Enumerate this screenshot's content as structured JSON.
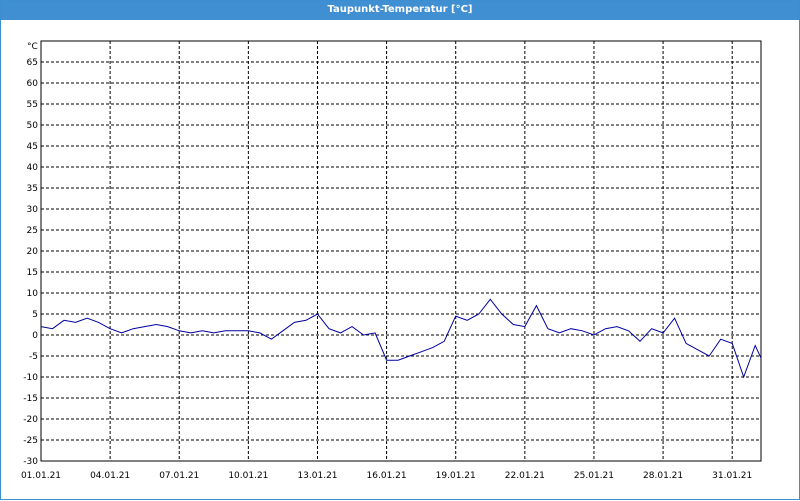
{
  "window": {
    "title": "Taupunkt-Temperatur [°C]"
  },
  "colors": {
    "title_bar": "#3f8fd2",
    "series": "#0000a0",
    "grid": "#000000"
  },
  "chart_data": {
    "type": "line",
    "title": "Taupunkt-Temperatur [°C]",
    "xlabel": "",
    "ylabel": "°C",
    "ylim": [
      -30,
      70
    ],
    "xlim": [
      "01.01.21",
      "01.02.21 06:00"
    ],
    "grid": true,
    "legend": "none",
    "x_ticks": [
      "01.01.21",
      "04.01.21",
      "07.01.21",
      "10.01.21",
      "13.01.21",
      "16.01.21",
      "19.01.21",
      "22.01.21",
      "25.01.21",
      "28.01.21",
      "31.01.21"
    ],
    "y_ticks": [
      -30,
      -25,
      -20,
      -15,
      -10,
      -5,
      0,
      5,
      10,
      15,
      20,
      25,
      30,
      35,
      40,
      45,
      50,
      55,
      60,
      65
    ],
    "y_unit_label": "°C",
    "series": [
      {
        "x": [
          "01.01.21 00:00",
          "01.01.21 12:00",
          "02.01.21 00:00",
          "02.01.21 12:00",
          "03.01.21 00:00",
          "03.01.21 12:00",
          "04.01.21 00:00",
          "04.01.21 12:00",
          "05.01.21 00:00",
          "05.01.21 12:00",
          "06.01.21 00:00",
          "06.01.21 12:00",
          "07.01.21 00:00",
          "07.01.21 12:00",
          "08.01.21 00:00",
          "08.01.21 12:00",
          "09.01.21 00:00",
          "09.01.21 12:00",
          "10.01.21 00:00",
          "10.01.21 12:00",
          "11.01.21 00:00",
          "11.01.21 12:00",
          "12.01.21 00:00",
          "12.01.21 12:00",
          "13.01.21 00:00",
          "13.01.21 12:00",
          "14.01.21 00:00",
          "14.01.21 12:00",
          "15.01.21 00:00",
          "15.01.21 12:00",
          "16.01.21 00:00",
          "16.01.21 12:00",
          "17.01.21 00:00",
          "17.01.21 12:00",
          "18.01.21 00:00",
          "18.01.21 12:00",
          "19.01.21 00:00",
          "19.01.21 12:00",
          "20.01.21 00:00",
          "20.01.21 12:00",
          "21.01.21 00:00",
          "21.01.21 12:00",
          "22.01.21 00:00",
          "22.01.21 12:00",
          "23.01.21 00:00",
          "23.01.21 12:00",
          "24.01.21 00:00",
          "24.01.21 12:00",
          "25.01.21 00:00",
          "25.01.21 12:00",
          "26.01.21 00:00",
          "26.01.21 12:00",
          "27.01.21 00:00",
          "27.01.21 12:00",
          "28.01.21 00:00",
          "28.01.21 12:00",
          "29.01.21 00:00",
          "29.01.21 12:00",
          "30.01.21 00:00",
          "30.01.21 12:00",
          "31.01.21 00:00",
          "31.01.21 12:00",
          "01.02.21 00:00",
          "01.02.21 06:00"
        ],
        "values": [
          2,
          1.5,
          3.5,
          3,
          4,
          3,
          1.5,
          0.5,
          1.5,
          2,
          2.5,
          2,
          1,
          0.5,
          1,
          0.5,
          1,
          1,
          1,
          0.5,
          -1,
          1,
          3,
          3.5,
          5,
          1.5,
          0.5,
          2,
          0,
          0.5,
          -6,
          -6,
          -5,
          -4,
          -3,
          -1.5,
          4.5,
          3.5,
          5,
          8.5,
          5,
          2.5,
          2,
          7,
          1.5,
          0.5,
          1.5,
          1,
          0,
          1.5,
          2,
          1,
          -1.5,
          1.5,
          0.5,
          4,
          -2,
          -3.5,
          -5,
          -1,
          -2,
          -10,
          -2.5,
          -5.5
        ]
      }
    ]
  }
}
